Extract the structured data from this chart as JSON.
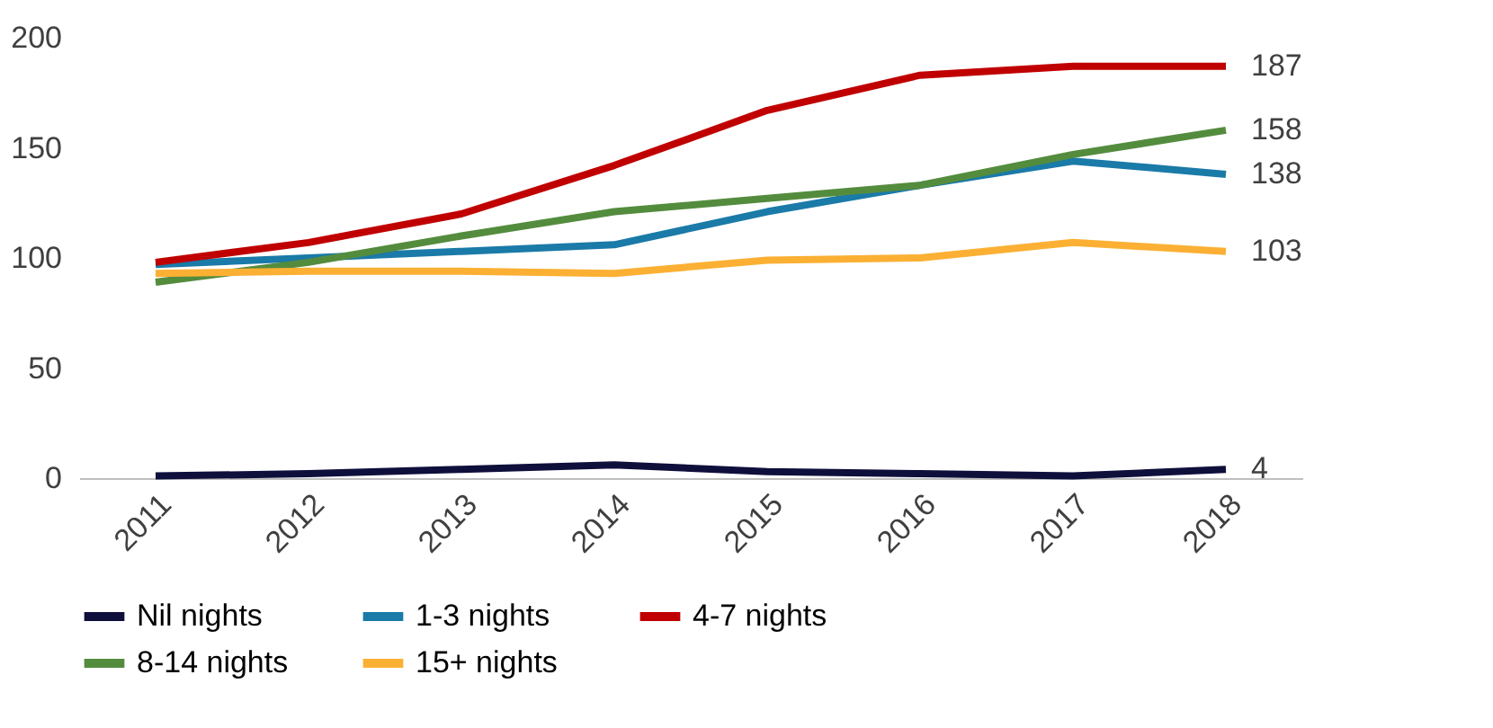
{
  "chart_data": {
    "type": "line",
    "categories": [
      "2011",
      "2012",
      "2013",
      "2014",
      "2015",
      "2016",
      "2017",
      "2018"
    ],
    "ylim": [
      0,
      200
    ],
    "yticks": [
      0,
      50,
      100,
      150,
      200
    ],
    "grid": false,
    "legend": "bottom",
    "marker": "none",
    "line_style": "solid",
    "series": [
      {
        "name": "Nil  nights",
        "color": "#0f0f3c",
        "values": [
          1,
          2,
          4,
          6,
          3,
          2,
          1,
          4
        ],
        "value_labels": [
          null,
          null,
          null,
          null,
          null,
          null,
          null,
          "4"
        ]
      },
      {
        "name": "1-3  nights",
        "color": "#1a7aa8",
        "values": [
          97,
          100,
          103,
          106,
          121,
          133,
          144,
          138
        ],
        "value_labels": [
          null,
          null,
          null,
          null,
          null,
          null,
          null,
          "138"
        ]
      },
      {
        "name": "4-7  nights",
        "color": "#c00000",
        "values": [
          98,
          107,
          120,
          142,
          167,
          183,
          187,
          187
        ],
        "value_labels": [
          null,
          null,
          null,
          null,
          null,
          null,
          null,
          "187"
        ]
      },
      {
        "name": "8-14 nights",
        "color": "#548c3e",
        "values": [
          89,
          98,
          110,
          121,
          127,
          133,
          147,
          158
        ],
        "value_labels": [
          null,
          null,
          null,
          null,
          null,
          null,
          null,
          "158"
        ]
      },
      {
        "name": "15+  nights",
        "color": "#fbb034",
        "values": [
          93,
          94,
          94,
          93,
          99,
          100,
          107,
          103
        ],
        "value_labels": [
          null,
          null,
          null,
          null,
          null,
          null,
          null,
          "103"
        ]
      }
    ]
  }
}
